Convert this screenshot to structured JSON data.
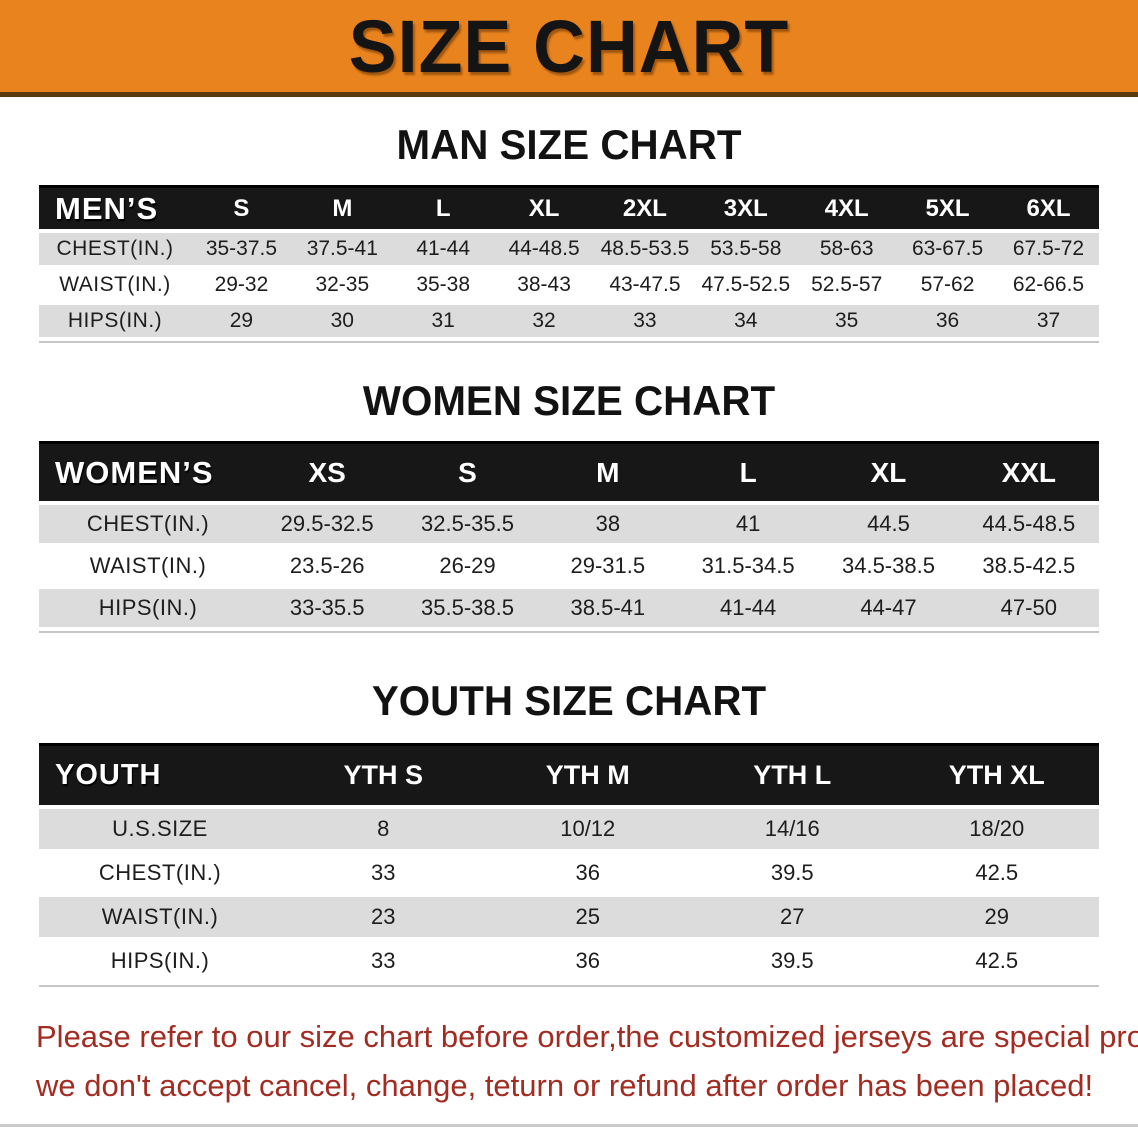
{
  "banner": {
    "title": "SIZE CHART"
  },
  "colors": {
    "banner_orange": "#e8831d",
    "table_header_black": "#171717",
    "row_shaded_gray": "#dcdcdc",
    "notice_red": "#a32c22"
  },
  "sections": [
    {
      "heading": "MAN SIZE CHART",
      "table": {
        "header_label": "MEN’S",
        "columns": [
          "S",
          "M",
          "L",
          "XL",
          "2XL",
          "3XL",
          "4XL",
          "5XL",
          "6XL"
        ],
        "rows": [
          {
            "label": "CHEST(IN.)",
            "values": [
              "35-37.5",
              "37.5-41",
              "41-44",
              "44-48.5",
              "48.5-53.5",
              "53.5-58",
              "58-63",
              "63-67.5",
              "67.5-72"
            ]
          },
          {
            "label": "WAIST(IN.)",
            "values": [
              "29-32",
              "32-35",
              "35-38",
              "38-43",
              "43-47.5",
              "47.5-52.5",
              "52.5-57",
              "57-62",
              "62-66.5"
            ]
          },
          {
            "label": "HIPS(IN.)",
            "values": [
              "29",
              "30",
              "31",
              "32",
              "33",
              "34",
              "35",
              "36",
              "37"
            ]
          }
        ]
      }
    },
    {
      "heading": "WOMEN SIZE CHART",
      "table": {
        "header_label": "WOMEN’S",
        "columns": [
          "XS",
          "S",
          "M",
          "L",
          "XL",
          "XXL"
        ],
        "rows": [
          {
            "label": "CHEST(IN.)",
            "values": [
              "29.5-32.5",
              "32.5-35.5",
              "38",
              "41",
              "44.5",
              "44.5-48.5"
            ]
          },
          {
            "label": "WAIST(IN.)",
            "values": [
              "23.5-26",
              "26-29",
              "29-31.5",
              "31.5-34.5",
              "34.5-38.5",
              "38.5-42.5"
            ]
          },
          {
            "label": "HIPS(IN.)",
            "values": [
              "33-35.5",
              "35.5-38.5",
              "38.5-41",
              "41-44",
              "44-47",
              "47-50"
            ]
          }
        ]
      }
    },
    {
      "heading": "YOUTH SIZE CHART",
      "table": {
        "header_label": "YOUTH",
        "columns": [
          "YTH S",
          "YTH M",
          "YTH L",
          "YTH XL"
        ],
        "rows": [
          {
            "label": "U.S.SIZE",
            "values": [
              "8",
              "10/12",
              "14/16",
              "18/20"
            ]
          },
          {
            "label": "CHEST(IN.)",
            "values": [
              "33",
              "36",
              "39.5",
              "42.5"
            ]
          },
          {
            "label": "WAIST(IN.)",
            "values": [
              "23",
              "25",
              "27",
              "29"
            ]
          },
          {
            "label": "HIPS(IN.)",
            "values": [
              "33",
              "36",
              "39.5",
              "42.5"
            ]
          }
        ]
      }
    }
  ],
  "notice": {
    "line1": "Please refer to our size chart before order,the customized jerseys are special products,",
    "line2": "we don't accept cancel, change, teturn or refund after order has been placed!"
  }
}
